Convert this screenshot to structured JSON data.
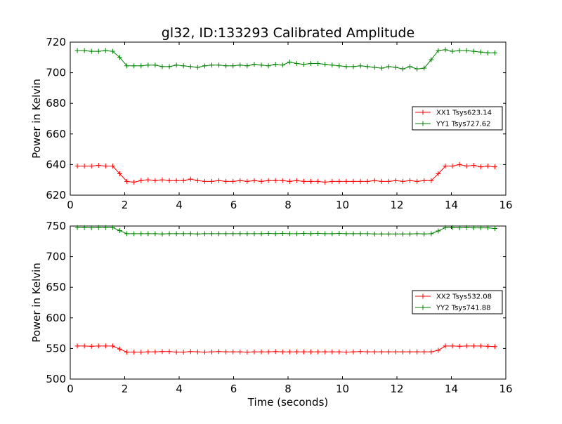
{
  "chart_data": {
    "title": "gl32, ID:133293 Calibrated Amplitude",
    "xlabel": "Time (seconds)",
    "panels": [
      {
        "type": "line",
        "ylabel": "Power in Kelvin",
        "xlim": [
          0,
          16
        ],
        "ylim": [
          620,
          720
        ],
        "xticks": [
          0,
          2,
          4,
          6,
          8,
          10,
          12,
          14,
          16
        ],
        "yticks": [
          620,
          640,
          660,
          680,
          700,
          720
        ],
        "legend_position": "center-right",
        "series": [
          {
            "name": "XX1 Tsys623.14",
            "color": "#ff0000",
            "x": [
              0.26,
              0.52,
              0.78,
              1.04,
              1.3,
              1.56,
              1.82,
              2.08,
              2.34,
              2.6,
              2.86,
              3.12,
              3.38,
              3.64,
              3.9,
              4.16,
              4.42,
              4.68,
              4.94,
              5.2,
              5.46,
              5.72,
              5.98,
              6.24,
              6.5,
              6.76,
              7.02,
              7.28,
              7.54,
              7.8,
              8.06,
              8.32,
              8.58,
              8.84,
              9.1,
              9.36,
              9.62,
              9.88,
              10.14,
              10.4,
              10.66,
              10.92,
              11.18,
              11.44,
              11.7,
              11.96,
              12.22,
              12.48,
              12.74,
              13.0,
              13.26,
              13.52,
              13.78,
              14.04,
              14.3,
              14.56,
              14.82,
              15.08,
              15.34,
              15.6
            ],
            "y": [
              639,
              639,
              639,
              639.5,
              639,
              639,
              634,
              629,
              628.5,
              629.5,
              630,
              629.5,
              630,
              629.5,
              629.5,
              629.5,
              630.5,
              629.5,
              629,
              629,
              629.5,
              629,
              629,
              629.5,
              629,
              629.5,
              629,
              629.5,
              629.5,
              629.5,
              629,
              629.5,
              629,
              629,
              629,
              628.5,
              629,
              629,
              629,
              629,
              629,
              629,
              629.5,
              629,
              629,
              629.5,
              629,
              629.5,
              629,
              629.5,
              629.5,
              634,
              639,
              639,
              640,
              639,
              639.5,
              638.5,
              639,
              638.5
            ]
          },
          {
            "name": "YY1 Tsys727.62",
            "color": "#008000",
            "x": [
              0.26,
              0.52,
              0.78,
              1.04,
              1.3,
              1.56,
              1.82,
              2.08,
              2.34,
              2.6,
              2.86,
              3.12,
              3.38,
              3.64,
              3.9,
              4.16,
              4.42,
              4.68,
              4.94,
              5.2,
              5.46,
              5.72,
              5.98,
              6.24,
              6.5,
              6.76,
              7.02,
              7.28,
              7.54,
              7.8,
              8.06,
              8.32,
              8.58,
              8.84,
              9.1,
              9.36,
              9.62,
              9.88,
              10.14,
              10.4,
              10.66,
              10.92,
              11.18,
              11.44,
              11.7,
              11.96,
              12.22,
              12.48,
              12.74,
              13.0,
              13.26,
              13.52,
              13.78,
              14.04,
              14.3,
              14.56,
              14.82,
              15.08,
              15.34,
              15.6
            ],
            "y": [
              714.5,
              714.5,
              714,
              714,
              714.5,
              714,
              710,
              704.5,
              704.5,
              704.5,
              705,
              705,
              704,
              704,
              705,
              704.5,
              704,
              703.5,
              704.5,
              705,
              705,
              704.5,
              704.5,
              705,
              704.5,
              705.5,
              705,
              704.5,
              705.5,
              705,
              707,
              706,
              705.5,
              706,
              706,
              705.5,
              705,
              704.5,
              704,
              704,
              704.5,
              704,
              703.5,
              703,
              704,
              703.5,
              702.5,
              704,
              702.5,
              703,
              708.5,
              714.5,
              715,
              714,
              714.5,
              714.5,
              714,
              713.5,
              713,
              713
            ]
          }
        ]
      },
      {
        "type": "line",
        "ylabel": "Power in Kelvin",
        "xlim": [
          0,
          16
        ],
        "ylim": [
          500,
          750
        ],
        "xticks": [
          0,
          2,
          4,
          6,
          8,
          10,
          12,
          14,
          16
        ],
        "yticks": [
          500,
          550,
          600,
          650,
          700,
          750
        ],
        "legend_position": "center-right",
        "series": [
          {
            "name": "XX2 Tsys532.08",
            "color": "#ff0000",
            "x": [
              0.26,
              0.52,
              0.78,
              1.04,
              1.3,
              1.56,
              1.82,
              2.08,
              2.34,
              2.6,
              2.86,
              3.12,
              3.38,
              3.64,
              3.9,
              4.16,
              4.42,
              4.68,
              4.94,
              5.2,
              5.46,
              5.72,
              5.98,
              6.24,
              6.5,
              6.76,
              7.02,
              7.28,
              7.54,
              7.8,
              8.06,
              8.32,
              8.58,
              8.84,
              9.1,
              9.36,
              9.62,
              9.88,
              10.14,
              10.4,
              10.66,
              10.92,
              11.18,
              11.44,
              11.7,
              11.96,
              12.22,
              12.48,
              12.74,
              13.0,
              13.26,
              13.52,
              13.78,
              14.04,
              14.3,
              14.56,
              14.82,
              15.08,
              15.34,
              15.6
            ],
            "y": [
              554,
              554,
              553.5,
              554,
              554,
              554,
              549,
              544,
              544,
              544,
              544.5,
              544.5,
              545,
              545,
              544,
              544,
              545,
              544.5,
              544,
              544.5,
              545,
              544.5,
              544.5,
              544.5,
              544,
              544.5,
              544.5,
              544.5,
              545,
              544.5,
              544.5,
              544.5,
              544.5,
              544.5,
              544.5,
              544.5,
              544.5,
              544.5,
              544,
              544.5,
              545,
              544.5,
              544.5,
              544.5,
              544.5,
              544.5,
              544.5,
              544.5,
              544.5,
              544.5,
              544.5,
              547,
              554,
              554,
              553.5,
              554,
              554,
              554,
              553.5,
              553
            ]
          },
          {
            "name": "YY2 Tsys741.88",
            "color": "#008000",
            "x": [
              0.26,
              0.52,
              0.78,
              1.04,
              1.3,
              1.56,
              1.82,
              2.08,
              2.34,
              2.6,
              2.86,
              3.12,
              3.38,
              3.64,
              3.9,
              4.16,
              4.42,
              4.68,
              4.94,
              5.2,
              5.46,
              5.72,
              5.98,
              6.24,
              6.5,
              6.76,
              7.02,
              7.28,
              7.54,
              7.8,
              8.06,
              8.32,
              8.58,
              8.84,
              9.1,
              9.36,
              9.62,
              9.88,
              10.14,
              10.4,
              10.66,
              10.92,
              11.18,
              11.44,
              11.7,
              11.96,
              12.22,
              12.48,
              12.74,
              13.0,
              13.26,
              13.52,
              13.78,
              14.04,
              14.3,
              14.56,
              14.82,
              15.08,
              15.34,
              15.6
            ],
            "y": [
              747.5,
              747.5,
              747,
              747.5,
              747.5,
              747.5,
              742.5,
              737.5,
              737.5,
              737.5,
              737.5,
              737.5,
              737,
              737.5,
              737.5,
              737.5,
              737.5,
              737,
              737.5,
              737.5,
              737.5,
              737.5,
              737.5,
              737.5,
              737.5,
              737.5,
              737.5,
              738,
              737.5,
              738,
              737.5,
              737.5,
              738,
              737.5,
              738,
              737.5,
              737.5,
              738,
              737.5,
              737.5,
              737.5,
              737.5,
              737,
              737,
              737,
              737,
              737,
              737,
              737.5,
              737,
              737.5,
              742,
              747.5,
              747.5,
              747,
              747.5,
              747,
              747,
              747,
              746
            ]
          }
        ]
      }
    ]
  }
}
